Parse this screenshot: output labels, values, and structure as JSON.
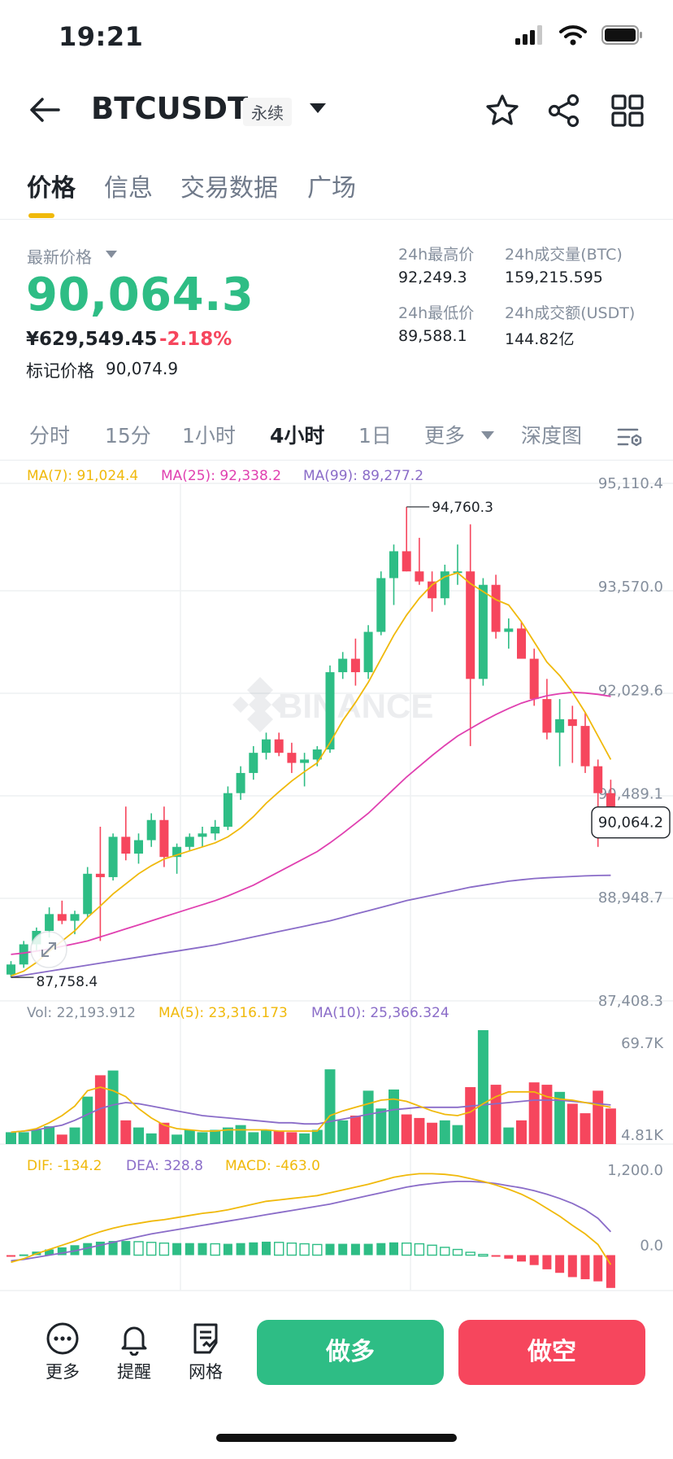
{
  "status": {
    "time": "19:21"
  },
  "header": {
    "symbol": "BTCUSDT",
    "badge": "永续",
    "icons": [
      "back-arrow-icon",
      "caret-down-icon",
      "star-icon",
      "share-icon",
      "grid-icon"
    ]
  },
  "tabs": [
    {
      "label": "价格",
      "active": true
    },
    {
      "label": "信息"
    },
    {
      "label": "交易数据"
    },
    {
      "label": "广场"
    }
  ],
  "ticker": {
    "latest_label": "最新价格",
    "last_price": "90,064.3",
    "fiat_price": "¥629,549.45",
    "change_pct": "-2.18%",
    "mark_label": "标记价格",
    "mark_price": "90,074.9",
    "high_label": "24h最高价",
    "high": "92,249.3",
    "low_label": "24h最低价",
    "low": "89,588.1",
    "vol_btc_label": "24h成交量(BTC)",
    "vol_btc": "159,215.595",
    "vol_usdt_label": "24h成交额(USDT)",
    "vol_usdt": "144.82亿"
  },
  "intervals": {
    "items": [
      "分时",
      "15分",
      "1小时",
      "4小时",
      "1日",
      "更多",
      "深度图"
    ],
    "active": "4小时"
  },
  "indicators": {
    "ma7": "MA(7): 91,024.4",
    "ma25": "MA(25): 92,338.2",
    "ma99": "MA(99): 89,277.2",
    "vol": "Vol: 22,193.912",
    "vol_ma5": "MA(5): 23,316.173",
    "vol_ma10": "MA(10): 25,366.324",
    "dif": "DIF: -134.2",
    "dea": "DEA: 328.8",
    "macd": "MACD: -463.0"
  },
  "colors": {
    "up": "#2ebd85",
    "down": "#f6465d",
    "ma7": "#f0b90b",
    "ma25": "#e040b0",
    "ma99": "#8a6cc8",
    "accent": "#f0b90b"
  },
  "chart_data": {
    "type": "candlestick",
    "price_axis": [
      "95,110.4",
      "93,570.0",
      "92,029.6",
      "90,489.1",
      "88,948.7",
      "87,408.3"
    ],
    "price_range": [
      87408.3,
      95110.4
    ],
    "high_marker": "94,760.3",
    "low_marker": "87,758.4",
    "last_marker": "90,064.2",
    "watermark": "BINANCE",
    "candles": [
      [
        87800,
        88000,
        87758,
        87950
      ],
      [
        87950,
        88300,
        87900,
        88250
      ],
      [
        88250,
        88500,
        88150,
        88450
      ],
      [
        88450,
        88800,
        88350,
        88700
      ],
      [
        88700,
        88900,
        88550,
        88600
      ],
      [
        88600,
        88750,
        88400,
        88700
      ],
      [
        88700,
        89400,
        88650,
        89300
      ],
      [
        89300,
        90000,
        88300,
        89250
      ],
      [
        89250,
        89900,
        89200,
        89850
      ],
      [
        89850,
        90300,
        89500,
        89600
      ],
      [
        89600,
        89900,
        89450,
        89800
      ],
      [
        89800,
        90200,
        89700,
        90100
      ],
      [
        90100,
        90300,
        89400,
        89550
      ],
      [
        89550,
        89750,
        89300,
        89700
      ],
      [
        89700,
        89900,
        89650,
        89850
      ],
      [
        89850,
        90000,
        89700,
        89900
      ],
      [
        89900,
        90100,
        89800,
        90000
      ],
      [
        90000,
        90600,
        89950,
        90500
      ],
      [
        90500,
        90900,
        90400,
        90800
      ],
      [
        90800,
        91200,
        90700,
        91100
      ],
      [
        91100,
        91400,
        91000,
        91300
      ],
      [
        91300,
        91400,
        91050,
        91100
      ],
      [
        91100,
        91250,
        90800,
        90950
      ],
      [
        90950,
        91100,
        90600,
        91000
      ],
      [
        91000,
        91200,
        90900,
        91150
      ],
      [
        91150,
        92400,
        91100,
        92300
      ],
      [
        92300,
        92600,
        92200,
        92500
      ],
      [
        92500,
        92800,
        92100,
        92300
      ],
      [
        92300,
        93000,
        92200,
        92900
      ],
      [
        92900,
        93800,
        92850,
        93700
      ],
      [
        93700,
        94200,
        93300,
        94100
      ],
      [
        94100,
        94760,
        93800,
        93800
      ],
      [
        93800,
        94300,
        93600,
        93650
      ],
      [
        93650,
        93800,
        93200,
        93400
      ],
      [
        93400,
        93900,
        93300,
        93800
      ],
      [
        93800,
        94200,
        93600,
        93800
      ],
      [
        93800,
        94500,
        91200,
        92200
      ],
      [
        92200,
        93700,
        92100,
        93600
      ],
      [
        93600,
        93750,
        92800,
        92900
      ],
      [
        92900,
        93100,
        92650,
        92950
      ],
      [
        92950,
        93050,
        92550,
        92500
      ],
      [
        92500,
        92650,
        91800,
        91900
      ],
      [
        91900,
        92200,
        91300,
        91400
      ],
      [
        91400,
        91900,
        90900,
        91600
      ],
      [
        91600,
        91800,
        90950,
        91500
      ],
      [
        91500,
        91700,
        90800,
        90900
      ],
      [
        90900,
        91000,
        89700,
        90500
      ],
      [
        90500,
        90700,
        89900,
        90064
      ]
    ],
    "ma7": [
      87780,
      87850,
      87980,
      88150,
      88300,
      88450,
      88650,
      88820,
      89000,
      89150,
      89300,
      89420,
      89520,
      89580,
      89640,
      89700,
      89760,
      89850,
      89980,
      90150,
      90350,
      90520,
      90680,
      90820,
      90950,
      91250,
      91580,
      91850,
      92150,
      92500,
      92850,
      93150,
      93400,
      93600,
      93720,
      93780,
      93620,
      93500,
      93380,
      93300,
      93050,
      92750,
      92450,
      92250,
      92000,
      91700,
      91350,
      91000
    ],
    "ma25": [
      88100,
      88120,
      88150,
      88180,
      88220,
      88260,
      88300,
      88360,
      88420,
      88480,
      88540,
      88600,
      88660,
      88720,
      88780,
      88840,
      88900,
      88970,
      89050,
      89130,
      89230,
      89330,
      89430,
      89530,
      89630,
      89760,
      89900,
      90050,
      90200,
      90380,
      90560,
      90740,
      90900,
      91060,
      91210,
      91350,
      91460,
      91570,
      91670,
      91760,
      91840,
      91900,
      91950,
      91980,
      92000,
      91990,
      91970,
      91940
    ],
    "ma99": [
      87760,
      87790,
      87820,
      87850,
      87880,
      87910,
      87940,
      87970,
      88000,
      88030,
      88060,
      88090,
      88120,
      88150,
      88180,
      88210,
      88240,
      88280,
      88320,
      88360,
      88400,
      88440,
      88480,
      88520,
      88560,
      88600,
      88650,
      88700,
      88750,
      88800,
      88850,
      88900,
      88940,
      88980,
      89020,
      89060,
      89100,
      89130,
      89160,
      89190,
      89210,
      89230,
      89240,
      89250,
      89260,
      89268,
      89274,
      89277
    ],
    "volume_axis": [
      "69.7K",
      "4.81K"
    ],
    "volume_range": [
      4810,
      69700
    ],
    "volumes": [
      10,
      10,
      12,
      15,
      8,
      14,
      40,
      58,
      62,
      20,
      14,
      9,
      18,
      8,
      12,
      10,
      12,
      14,
      16,
      10,
      12,
      11,
      10,
      9,
      12,
      63,
      20,
      24,
      45,
      30,
      46,
      25,
      22,
      18,
      20,
      16,
      48,
      96,
      50,
      14,
      20,
      52,
      50,
      44,
      34,
      26,
      45,
      30
    ],
    "vol_ma5": [
      10,
      11,
      13,
      18,
      24,
      32,
      45,
      48,
      45,
      40,
      30,
      22,
      16,
      13,
      12,
      11,
      11,
      12,
      12,
      12,
      12,
      11,
      11,
      11,
      11,
      24,
      28,
      31,
      34,
      37,
      38,
      36,
      32,
      28,
      25,
      24,
      27,
      34,
      40,
      44,
      44,
      44,
      40,
      38,
      37,
      35,
      33,
      31
    ],
    "vol_ma10": [
      10,
      11,
      12,
      14,
      16,
      20,
      25,
      30,
      33,
      35,
      34,
      32,
      30,
      28,
      26,
      24,
      23,
      22,
      21,
      20,
      19,
      18,
      18,
      17,
      17,
      19,
      21,
      23,
      25,
      27,
      29,
      30,
      31,
      31,
      31,
      31,
      32,
      33,
      34,
      35,
      36,
      37,
      37,
      37,
      36,
      35,
      34,
      33
    ],
    "macd_axis": [
      "1,200.0",
      "0.0"
    ],
    "macd_range": [
      -500,
      1200
    ],
    "dif": [
      -100,
      -50,
      20,
      80,
      140,
      200,
      270,
      330,
      380,
      420,
      450,
      480,
      500,
      530,
      560,
      590,
      610,
      640,
      680,
      720,
      760,
      780,
      800,
      820,
      840,
      880,
      920,
      960,
      1000,
      1050,
      1100,
      1130,
      1150,
      1150,
      1140,
      1120,
      1080,
      1040,
      990,
      930,
      860,
      770,
      660,
      550,
      420,
      300,
      150,
      -134
    ],
    "dea": [
      -80,
      -60,
      -30,
      0,
      30,
      60,
      100,
      140,
      180,
      220,
      260,
      300,
      330,
      360,
      390,
      420,
      450,
      480,
      510,
      540,
      570,
      600,
      630,
      660,
      690,
      720,
      760,
      800,
      840,
      880,
      920,
      960,
      990,
      1010,
      1030,
      1040,
      1040,
      1030,
      1010,
      980,
      950,
      910,
      860,
      800,
      730,
      640,
      520,
      329
    ],
    "macd_hist": [
      -20,
      10,
      50,
      80,
      110,
      140,
      170,
      190,
      200,
      200,
      190,
      180,
      170,
      170,
      170,
      170,
      160,
      160,
      170,
      180,
      190,
      180,
      170,
      160,
      150,
      160,
      160,
      160,
      160,
      170,
      180,
      170,
      160,
      140,
      110,
      80,
      40,
      10,
      -20,
      -50,
      -90,
      -140,
      -200,
      -250,
      -310,
      -340,
      -370,
      -463
    ]
  }
}
